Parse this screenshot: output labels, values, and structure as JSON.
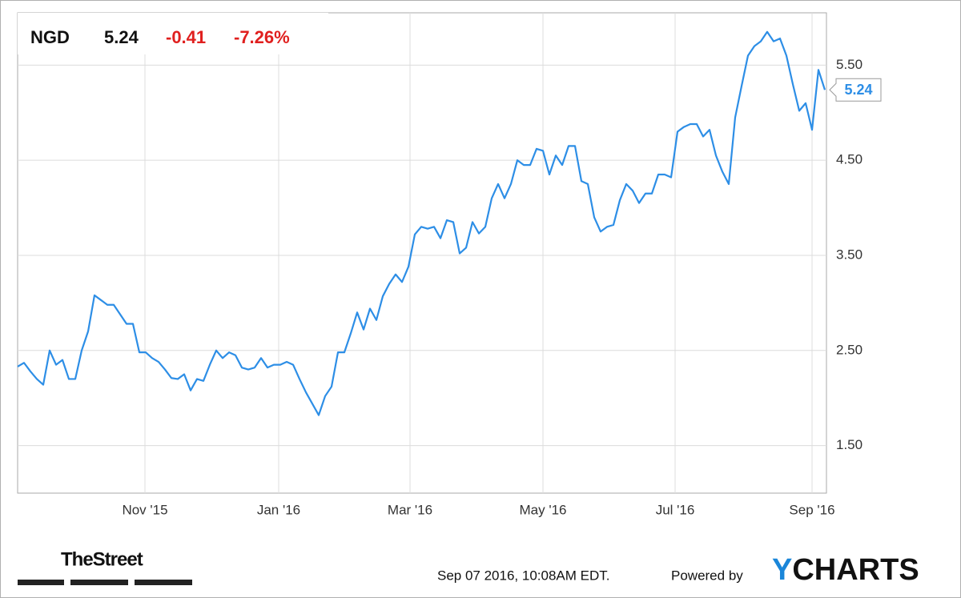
{
  "header": {
    "symbol": "NGD",
    "price": "5.24",
    "change": "-0.41",
    "change_pct": "-7.26%"
  },
  "footer": {
    "brand": "TheStreet",
    "timestamp": "Sep 07 2016, 10:08AM EDT.",
    "powered_by": "Powered by",
    "logo_first": "Y",
    "logo_rest": "CHARTS"
  },
  "chart_data": {
    "type": "line",
    "series": [
      {
        "name": "NGD",
        "color": "#2d8ee6",
        "values": [
          2.33,
          2.37,
          2.28,
          2.2,
          2.14,
          2.5,
          2.35,
          2.4,
          2.2,
          2.2,
          2.5,
          2.7,
          3.08,
          3.03,
          2.98,
          2.98,
          2.88,
          2.78,
          2.78,
          2.48,
          2.48,
          2.42,
          2.38,
          2.3,
          2.21,
          2.2,
          2.25,
          2.08,
          2.2,
          2.18,
          2.35,
          2.5,
          2.42,
          2.48,
          2.45,
          2.32,
          2.3,
          2.32,
          2.42,
          2.32,
          2.35,
          2.35,
          2.38,
          2.35,
          2.2,
          2.06,
          1.94,
          1.82,
          2.02,
          2.12,
          2.48,
          2.48,
          2.68,
          2.9,
          2.72,
          2.94,
          2.82,
          3.07,
          3.2,
          3.3,
          3.22,
          3.38,
          3.72,
          3.8,
          3.78,
          3.8,
          3.68,
          3.87,
          3.85,
          3.52,
          3.58,
          3.85,
          3.73,
          3.8,
          4.1,
          4.25,
          4.1,
          4.25,
          4.5,
          4.45,
          4.45,
          4.62,
          4.6,
          4.35,
          4.55,
          4.45,
          4.65,
          4.65,
          4.28,
          4.25,
          3.9,
          3.75,
          3.8,
          3.82,
          4.08,
          4.25,
          4.18,
          4.05,
          4.15,
          4.15,
          4.35,
          4.35,
          4.32,
          4.8,
          4.85,
          4.88,
          4.88,
          4.75,
          4.82,
          4.55,
          4.38,
          4.25,
          4.95,
          5.28,
          5.6,
          5.7,
          5.75,
          5.85,
          5.75,
          5.78,
          5.6,
          5.3,
          5.02,
          5.1,
          4.82,
          5.45,
          5.24
        ]
      }
    ],
    "xlim": [
      0,
      126.25
    ],
    "xticks": [
      {
        "value": 19.875,
        "label": "Nov '15"
      },
      {
        "value": 40.75,
        "label": "Jan '16"
      },
      {
        "value": 61.25,
        "label": "Mar '16"
      },
      {
        "value": 82,
        "label": "May '16"
      },
      {
        "value": 102.625,
        "label": "Jul '16"
      },
      {
        "value": 124,
        "label": "Sep '16"
      }
    ],
    "ylim": [
      1.0,
      6.05
    ],
    "yticks": [
      {
        "value": 1.5,
        "label": "1.50"
      },
      {
        "value": 2.5,
        "label": "2.50"
      },
      {
        "value": 3.5,
        "label": "3.50"
      },
      {
        "value": 4.5,
        "label": "4.50"
      },
      {
        "value": 5.5,
        "label": "5.50"
      }
    ],
    "grid": true
  }
}
